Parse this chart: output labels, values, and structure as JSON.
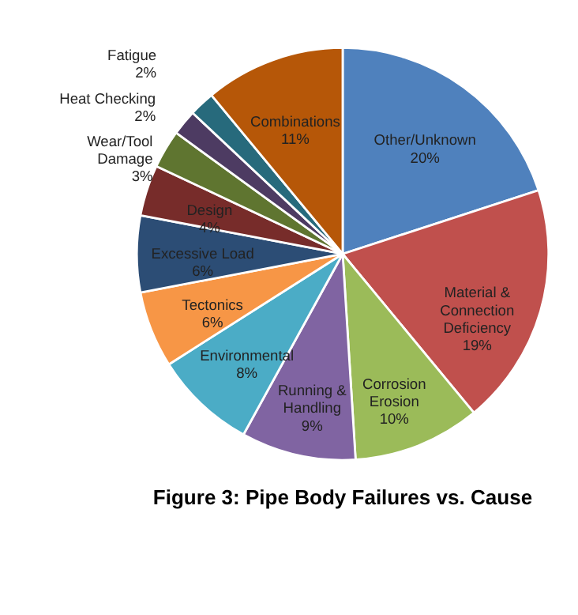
{
  "chart_data": {
    "type": "pie",
    "title": "Figure 3: Pipe Body Failures vs. Cause",
    "categories": [
      "Other/Unknown",
      "Material &\nConnection\nDeficiency",
      "Corrosion\nErosion",
      "Running &\nHandling",
      "Environmental",
      "Tectonics",
      "Excessive Load",
      "Design",
      "Wear/Tool\nDamage",
      "Heat Checking",
      "Fatigue",
      "Combinations"
    ],
    "values": [
      20,
      19,
      10,
      9,
      8,
      6,
      6,
      4,
      3,
      2,
      2,
      11
    ],
    "value_labels": [
      "20%",
      "19%",
      "10%",
      "9%",
      "8%",
      "6%",
      "6%",
      "4%",
      "3%",
      "2%",
      "2%",
      "11%"
    ],
    "colors": [
      "#4f81bd",
      "#c0504d",
      "#9bbb59",
      "#8064a2",
      "#4bacc6",
      "#f79646",
      "#2c4d75",
      "#772c2a",
      "#5f7530",
      "#4d3b62",
      "#276a7c",
      "#b65708"
    ]
  }
}
